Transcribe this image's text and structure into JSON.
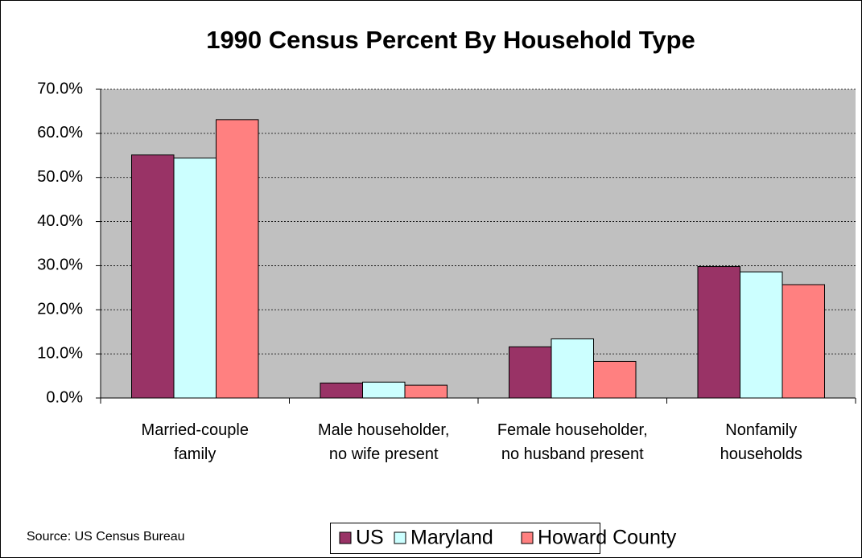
{
  "chart_data": {
    "type": "bar",
    "title": "1990 Census Percent By Household Type",
    "source": "Source:  US Census Bureau",
    "categories": [
      "Married-couple family",
      "Male householder, no wife present",
      "Female householder, no husband present",
      "Nonfamily households"
    ],
    "series": [
      {
        "name": "US",
        "color": "#993366",
        "values": [
          55.1,
          3.4,
          11.6,
          29.8
        ]
      },
      {
        "name": "Maryland",
        "color": "#ccffff",
        "values": [
          54.4,
          3.6,
          13.4,
          28.6
        ]
      },
      {
        "name": "Howard County",
        "color": "#ff8080",
        "values": [
          63.1,
          2.9,
          8.3,
          25.7
        ]
      }
    ],
    "ylim": [
      0,
      70
    ],
    "yticks": [
      {
        "value": 0,
        "label": "0.0%"
      },
      {
        "value": 10,
        "label": "10.0%"
      },
      {
        "value": 20,
        "label": "20.0%"
      },
      {
        "value": 30,
        "label": "30.0%"
      },
      {
        "value": 40,
        "label": "40.0%"
      },
      {
        "value": 50,
        "label": "50.0%"
      },
      {
        "value": 60,
        "label": "60.0%"
      },
      {
        "value": 70,
        "label": "70.0%"
      }
    ],
    "grid": true,
    "legend": "bottom",
    "plot_background": "#c0c0c0"
  }
}
